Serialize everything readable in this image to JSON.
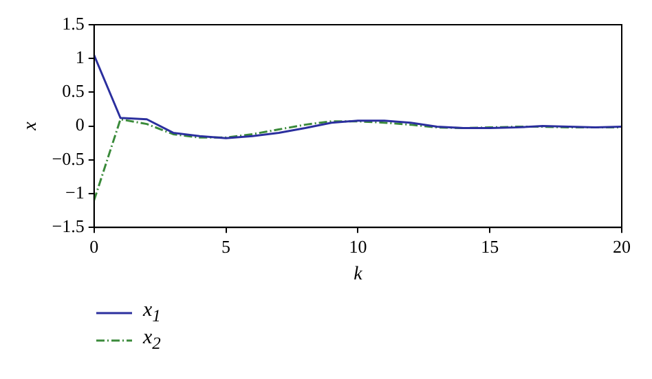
{
  "chart_data": {
    "type": "line",
    "xlabel": "k",
    "ylabel": "x",
    "x": [
      0,
      1,
      2,
      3,
      4,
      5,
      6,
      7,
      8,
      9,
      10,
      11,
      12,
      13,
      14,
      15,
      16,
      17,
      18,
      19,
      20
    ],
    "xlim": [
      0,
      20
    ],
    "xticks": [
      0,
      5,
      10,
      15,
      20
    ],
    "ylim": [
      -1.5,
      1.5
    ],
    "yticks": [
      -1.5,
      -1,
      -0.5,
      0,
      0.5,
      1,
      1.5
    ],
    "grid": false,
    "legend": "bottom left",
    "marker": "none",
    "series": [
      {
        "name": "x$_{1}$",
        "color": "#2b2f9e",
        "line_style": "solid",
        "values": [
          1.05,
          0.12,
          0.1,
          -0.1,
          -0.15,
          -0.18,
          -0.15,
          -0.1,
          -0.03,
          0.05,
          0.08,
          0.08,
          0.05,
          -0.01,
          -0.03,
          -0.03,
          -0.02,
          0,
          -0.01,
          -0.02,
          -0.01
        ]
      },
      {
        "name": "x$_{2}$",
        "color": "#3a8a3a",
        "line_style": "dashed",
        "values": [
          -1.1,
          0.1,
          0.03,
          -0.12,
          -0.17,
          -0.17,
          -0.12,
          -0.05,
          0.02,
          0.07,
          0.07,
          0.05,
          0.02,
          -0.02,
          -0.03,
          -0.02,
          -0.01,
          -0.01,
          -0.02,
          -0.02,
          -0.02
        ]
      }
    ]
  }
}
